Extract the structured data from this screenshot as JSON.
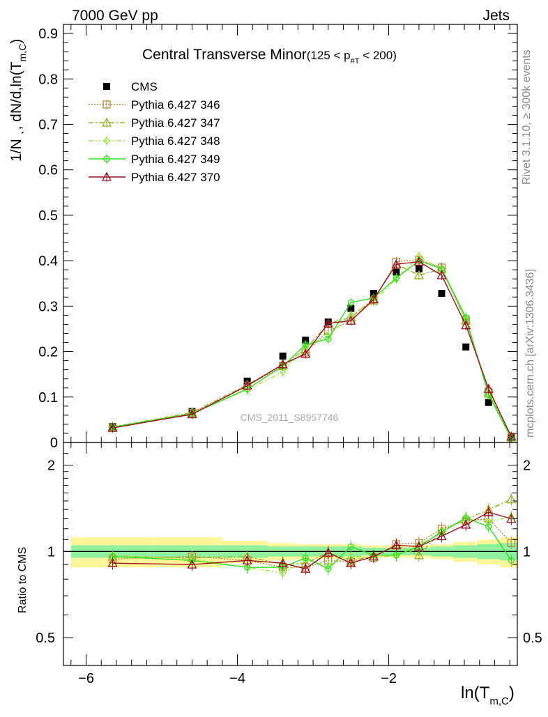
{
  "header": {
    "left": "7000 GeV pp",
    "right": "Jets"
  },
  "side_labels": {
    "rivet": "Rivet 3.1.10, ≥ 300k events",
    "mcplots": "mcplots.cern.ch [arXiv:1306.3436]"
  },
  "watermark": "CMS_2011_S8957746",
  "ylabel_top": {
    "main": "1/N ˎ, dN/d,ln(T",
    "sub": "m,C",
    "close": ")"
  },
  "ylabel_bottom": "Ratio to CMS",
  "xlabel": {
    "main": "ln(T",
    "sub": "m,C",
    "close": ")"
  },
  "title": {
    "main": "Central Transverse Minor",
    "range_open": "(125 < p",
    "range_sub": "#T",
    "range_close": " < 200)"
  },
  "colors": {
    "cms": "#000000",
    "p346": "#b5893d",
    "p347": "#9aae20",
    "p348": "#9fe641",
    "p349": "#33dd22",
    "p370": "#9b1020",
    "band_inner": "#8ff0a0",
    "band_outer": "#fff59a"
  },
  "chart_data": [
    {
      "type": "scatter",
      "panel": "main",
      "xlim": [
        -6.3,
        -0.3
      ],
      "ylim": [
        0,
        0.92
      ],
      "x_ticks": [
        -6,
        -4,
        -2
      ],
      "y_ticks": [
        0,
        0.1,
        0.2,
        0.3,
        0.4,
        0.5,
        0.6,
        0.7,
        0.8,
        0.9
      ],
      "y_tick_labels": [
        "0",
        "0.1",
        "0.2",
        "0.3",
        "0.4",
        "0.5",
        "0.6",
        "0.7",
        "0.8",
        "0.9"
      ],
      "x": [
        -5.65,
        -4.6,
        -3.87,
        -3.4,
        -3.1,
        -2.8,
        -2.5,
        -2.2,
        -1.9,
        -1.6,
        -1.3,
        -0.98,
        -0.68,
        -0.38
      ],
      "series": [
        {
          "name": "CMS",
          "key": "cms",
          "style": "cms",
          "values": [
            0.035,
            0.068,
            0.135,
            0.19,
            0.225,
            0.265,
            0.295,
            0.328,
            0.375,
            0.382,
            0.328,
            0.21,
            0.088,
            0.01
          ]
        },
        {
          "name": "Pythia 6.427 346",
          "key": "p346",
          "style": "square",
          "dash": "2,2",
          "values": [
            0.033,
            0.065,
            0.125,
            0.168,
            0.198,
            0.245,
            0.268,
            0.312,
            0.398,
            0.402,
            0.385,
            0.27,
            0.112,
            0.011
          ]
        },
        {
          "name": "Pythia 6.427 347",
          "key": "p347",
          "style": "triangle",
          "dash": "7,3,2,3",
          "values": [
            0.034,
            0.066,
            0.127,
            0.17,
            0.205,
            0.262,
            0.275,
            0.316,
            0.392,
            0.368,
            0.382,
            0.268,
            0.108,
            0.012
          ]
        },
        {
          "name": "Pythia 6.427 348",
          "key": "p348",
          "style": "diamond",
          "dash": "7,3,2,3,2,3",
          "values": [
            0.035,
            0.064,
            0.116,
            0.155,
            0.21,
            0.235,
            0.28,
            0.31,
            0.36,
            0.41,
            0.38,
            0.27,
            0.11,
            0.012
          ]
        },
        {
          "name": "Pythia 6.427 349",
          "key": "p349",
          "style": "circle",
          "dash": "",
          "values": [
            0.034,
            0.063,
            0.118,
            0.168,
            0.215,
            0.228,
            0.308,
            0.318,
            0.362,
            0.4,
            0.382,
            0.275,
            0.105,
            0.009
          ]
        },
        {
          "name": "Pythia 6.427 370",
          "key": "p370",
          "style": "triangle",
          "dash": "",
          "values": [
            0.032,
            0.062,
            0.125,
            0.172,
            0.195,
            0.262,
            0.268,
            0.315,
            0.392,
            0.398,
            0.368,
            0.258,
            0.118,
            0.013
          ]
        }
      ]
    },
    {
      "type": "line",
      "panel": "ratio",
      "ylabel": "Ratio to CMS",
      "ylim": [
        0.4,
        2.4
      ],
      "log_scale_y": true,
      "y_ticks": [
        0.5,
        1,
        2
      ],
      "y_tick_labels": [
        "0.5",
        "1",
        "2"
      ],
      "x_ticks": [
        -6,
        -4,
        -2
      ],
      "x_tick_labels": [
        "−6",
        "−4",
        "−2"
      ],
      "band": {
        "x_edges": [
          -6.2,
          -5.1,
          -4.2,
          -3.6,
          -3.25,
          -2.95,
          -2.65,
          -2.35,
          -2.05,
          -1.75,
          -1.45,
          -1.15,
          -0.83,
          -0.53,
          -0.3
        ],
        "inner": [
          0.05,
          0.05,
          0.05,
          0.04,
          0.04,
          0.04,
          0.04,
          0.03,
          0.03,
          0.03,
          0.04,
          0.05,
          0.06,
          0.07
        ],
        "outer": [
          0.12,
          0.12,
          0.09,
          0.07,
          0.06,
          0.06,
          0.06,
          0.05,
          0.05,
          0.05,
          0.06,
          0.08,
          0.1,
          0.12
        ]
      },
      "series": [
        {
          "name": "Pythia 6.427 346",
          "key": "p346",
          "style": "square",
          "dash": "2,2",
          "values": [
            0.94,
            0.96,
            0.93,
            0.88,
            0.88,
            0.93,
            0.92,
            0.95,
            1.06,
            1.07,
            1.2,
            1.28,
            1.3,
            1.07
          ]
        },
        {
          "name": "Pythia 6.427 347",
          "key": "p347",
          "style": "triangle",
          "dash": "7,3,2,3",
          "values": [
            0.96,
            0.95,
            0.96,
            0.9,
            0.91,
            0.99,
            0.93,
            0.96,
            1.05,
            0.97,
            1.18,
            1.29,
            1.4,
            1.52
          ]
        },
        {
          "name": "Pythia 6.427 348",
          "key": "p348",
          "style": "diamond",
          "dash": "7,3,2,3,2,3",
          "values": [
            0.97,
            0.94,
            0.88,
            0.84,
            0.93,
            0.89,
            0.96,
            0.95,
            0.97,
            1.05,
            1.17,
            1.3,
            1.27,
            1.32
          ]
        },
        {
          "name": "Pythia 6.427 349",
          "key": "p349",
          "style": "circle",
          "dash": "",
          "values": [
            0.96,
            0.93,
            0.88,
            0.88,
            0.95,
            0.87,
            1.04,
            0.97,
            0.97,
            1.04,
            1.17,
            1.31,
            1.22,
            0.93
          ]
        },
        {
          "name": "Pythia 6.427 370",
          "key": "p370",
          "style": "triangle",
          "dash": "",
          "values": [
            0.91,
            0.9,
            0.93,
            0.91,
            0.87,
            0.99,
            0.91,
            0.96,
            1.05,
            1.04,
            1.13,
            1.24,
            1.37,
            1.3
          ]
        }
      ]
    }
  ]
}
